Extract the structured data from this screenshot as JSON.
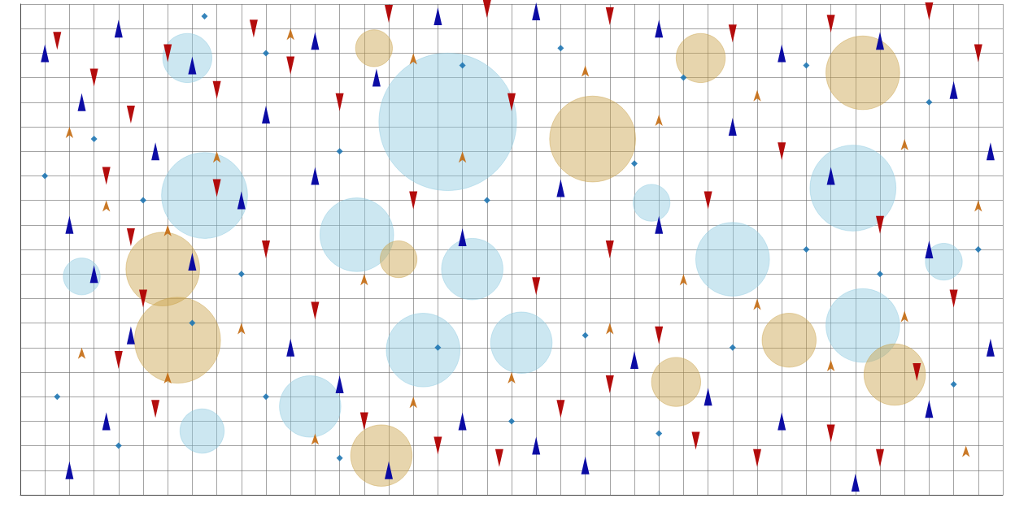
{
  "chart_data": {
    "type": "scatter",
    "xlim": [
      0,
      40
    ],
    "ylim": [
      0,
      20
    ],
    "xticks": [
      0,
      1,
      2,
      3,
      4,
      5,
      6,
      7,
      8,
      9,
      10,
      11,
      12,
      13,
      14,
      15,
      16,
      17,
      18,
      19,
      20,
      21,
      22,
      23,
      24,
      25,
      26,
      27,
      28,
      29,
      30,
      31,
      32,
      33,
      34,
      35,
      36,
      37,
      38,
      39,
      40
    ],
    "yticks": [
      0,
      1,
      2,
      3,
      4,
      5,
      6,
      7,
      8,
      9,
      10,
      11,
      12,
      13,
      14,
      15,
      16,
      17,
      18,
      19,
      20
    ],
    "grid": true,
    "tick_labels": false,
    "series": [
      {
        "color": "#8ec9e0",
        "marker": "circle",
        "points": [
          [
            17.4,
            15.2
          ],
          [
            7.5,
            12.2
          ],
          [
            13.7,
            10.6
          ],
          [
            18.4,
            9.2
          ],
          [
            16.4,
            5.9
          ],
          [
            11.8,
            3.6
          ],
          [
            33.9,
            12.5
          ],
          [
            29.0,
            9.6
          ],
          [
            34.3,
            6.9
          ],
          [
            20.4,
            6.2
          ],
          [
            6.8,
            17.8
          ],
          [
            7.4,
            2.6
          ],
          [
            2.5,
            8.9
          ],
          [
            25.7,
            11.9
          ],
          [
            37.6,
            9.5
          ]
        ],
        "sizes": [
          5.6,
          3.5,
          3.0,
          2.5,
          3.0,
          2.5,
          3.5,
          3.0,
          3.0,
          2.5,
          2.0,
          1.8,
          1.5,
          1.5,
          1.5
        ]
      },
      {
        "color": "#c9a24a",
        "marker": "circle",
        "points": [
          [
            23.3,
            14.5
          ],
          [
            27.7,
            17.8
          ],
          [
            34.3,
            17.2
          ],
          [
            5.8,
            9.2
          ],
          [
            6.4,
            6.3
          ],
          [
            31.3,
            6.3
          ],
          [
            14.7,
            1.6
          ],
          [
            14.4,
            18.2
          ],
          [
            35.6,
            4.9
          ],
          [
            26.7,
            4.6
          ],
          [
            15.4,
            9.6
          ]
        ],
        "sizes": [
          3.5,
          2.0,
          3.0,
          3.0,
          3.5,
          2.2,
          2.5,
          1.5,
          2.5,
          2.0,
          1.5
        ]
      },
      {
        "color": "#b00000",
        "marker": "triangle_down",
        "points": [
          [
            1.5,
            18.5
          ],
          [
            3,
            17
          ],
          [
            4.5,
            15.5
          ],
          [
            6,
            18
          ],
          [
            8,
            16.5
          ],
          [
            9.5,
            19
          ],
          [
            11,
            17.5
          ],
          [
            13,
            16
          ],
          [
            15,
            19.6
          ],
          [
            19,
            19.8
          ],
          [
            24,
            19.5
          ],
          [
            29,
            18.8
          ],
          [
            33,
            19.2
          ],
          [
            37,
            19.7
          ],
          [
            39,
            18
          ],
          [
            3.5,
            13
          ],
          [
            4.5,
            10.5
          ],
          [
            5,
            8
          ],
          [
            4,
            5.5
          ],
          [
            5.5,
            3.5
          ],
          [
            8,
            12.5
          ],
          [
            10,
            10
          ],
          [
            12,
            7.5
          ],
          [
            14,
            3
          ],
          [
            17,
            2
          ],
          [
            19.5,
            1.5
          ],
          [
            22,
            3.5
          ],
          [
            24,
            4.5
          ],
          [
            26,
            6.5
          ],
          [
            27.5,
            2.2
          ],
          [
            30,
            1.5
          ],
          [
            33,
            2.5
          ],
          [
            35,
            1.5
          ],
          [
            36.5,
            5
          ],
          [
            38,
            8
          ],
          [
            35,
            11
          ],
          [
            31,
            14
          ],
          [
            28,
            12
          ],
          [
            24,
            10
          ],
          [
            21,
            8.5
          ],
          [
            16,
            12
          ],
          [
            20,
            16
          ]
        ]
      },
      {
        "color": "#0000a0",
        "marker": "triangle",
        "points": [
          [
            1,
            18
          ],
          [
            2.5,
            16
          ],
          [
            4,
            19
          ],
          [
            5.5,
            14
          ],
          [
            7,
            17.5
          ],
          [
            10,
            15.5
          ],
          [
            12,
            18.5
          ],
          [
            14.5,
            17
          ],
          [
            17,
            19.5
          ],
          [
            21,
            19.7
          ],
          [
            26,
            19
          ],
          [
            31,
            18
          ],
          [
            35,
            18.5
          ],
          [
            38,
            16.5
          ],
          [
            39.5,
            14
          ],
          [
            2,
            11
          ],
          [
            3,
            9
          ],
          [
            4.5,
            6.5
          ],
          [
            3.5,
            3
          ],
          [
            2,
            1
          ],
          [
            7,
            9.5
          ],
          [
            9,
            12
          ],
          [
            11,
            6
          ],
          [
            13,
            4.5
          ],
          [
            15,
            1
          ],
          [
            18,
            3
          ],
          [
            21,
            2
          ],
          [
            23,
            1.2
          ],
          [
            25,
            5.5
          ],
          [
            28,
            4
          ],
          [
            31,
            3
          ],
          [
            34,
            0.5
          ],
          [
            37,
            3.5
          ],
          [
            39.5,
            6
          ],
          [
            37,
            10
          ],
          [
            33,
            13
          ],
          [
            29,
            15
          ],
          [
            26,
            11
          ],
          [
            22,
            12.5
          ],
          [
            18,
            10.5
          ],
          [
            12,
            13
          ]
        ]
      },
      {
        "color": "#c46a10",
        "marker": "arrow",
        "points": [
          [
            2,
            15
          ],
          [
            3.5,
            12
          ],
          [
            6,
            11
          ],
          [
            8,
            14
          ],
          [
            11,
            19
          ],
          [
            16,
            18
          ],
          [
            23,
            17.5
          ],
          [
            30,
            16.5
          ],
          [
            36,
            14.5
          ],
          [
            39,
            12
          ],
          [
            2.5,
            6
          ],
          [
            6,
            5
          ],
          [
            9,
            7
          ],
          [
            12,
            2.5
          ],
          [
            16,
            4
          ],
          [
            20,
            5
          ],
          [
            24,
            7
          ],
          [
            27,
            9
          ],
          [
            30,
            8
          ],
          [
            33,
            5.5
          ],
          [
            36,
            7.5
          ],
          [
            38.5,
            2
          ],
          [
            18,
            14
          ],
          [
            26,
            15.5
          ],
          [
            14,
            9
          ]
        ]
      },
      {
        "color": "#1f77b4",
        "marker": "diamond",
        "points": [
          [
            1,
            13
          ],
          [
            3,
            14.5
          ],
          [
            5,
            12
          ],
          [
            7.5,
            19.5
          ],
          [
            10,
            18
          ],
          [
            13,
            14
          ],
          [
            18,
            17.5
          ],
          [
            22,
            18.2
          ],
          [
            27,
            17
          ],
          [
            32,
            17.5
          ],
          [
            37,
            16
          ],
          [
            39,
            10
          ],
          [
            1.5,
            4
          ],
          [
            4,
            2
          ],
          [
            7,
            7
          ],
          [
            10,
            4
          ],
          [
            13,
            1.5
          ],
          [
            17,
            6
          ],
          [
            20,
            3
          ],
          [
            23,
            6.5
          ],
          [
            26,
            2.5
          ],
          [
            29,
            6
          ],
          [
            32,
            10
          ],
          [
            35,
            9
          ],
          [
            38,
            4.5
          ],
          [
            19,
            12
          ],
          [
            25,
            13.5
          ],
          [
            9,
            9
          ]
        ]
      }
    ]
  }
}
